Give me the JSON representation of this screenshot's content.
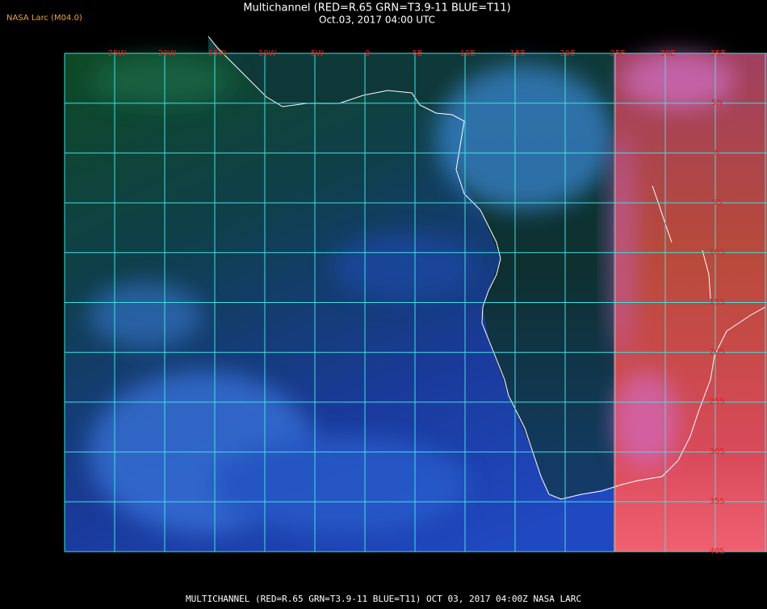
{
  "header": {
    "title": "Multichannel (RED=R.65 GRN=T3.9-11 BLUE=T11)",
    "subtitle": "Oct.03, 2017 04:00 UTC",
    "source": "NASA Larc (M04.0)"
  },
  "map": {
    "lon_labels": [
      "25W",
      "20W",
      "15W",
      "10W",
      "5W",
      "0",
      "5E",
      "10E",
      "15E",
      "20E",
      "25E",
      "30E",
      "35E"
    ],
    "lat_labels": [
      "5N",
      "0",
      "5S",
      "10S",
      "15S",
      "20S",
      "25S",
      "30S",
      "35S",
      "40S"
    ]
  },
  "footer": "MULTICHANNEL (RED=R.65 GRN=T3.9-11 BLUE=T11) OCT 03, 2017 04:00Z  NASA LARC"
}
